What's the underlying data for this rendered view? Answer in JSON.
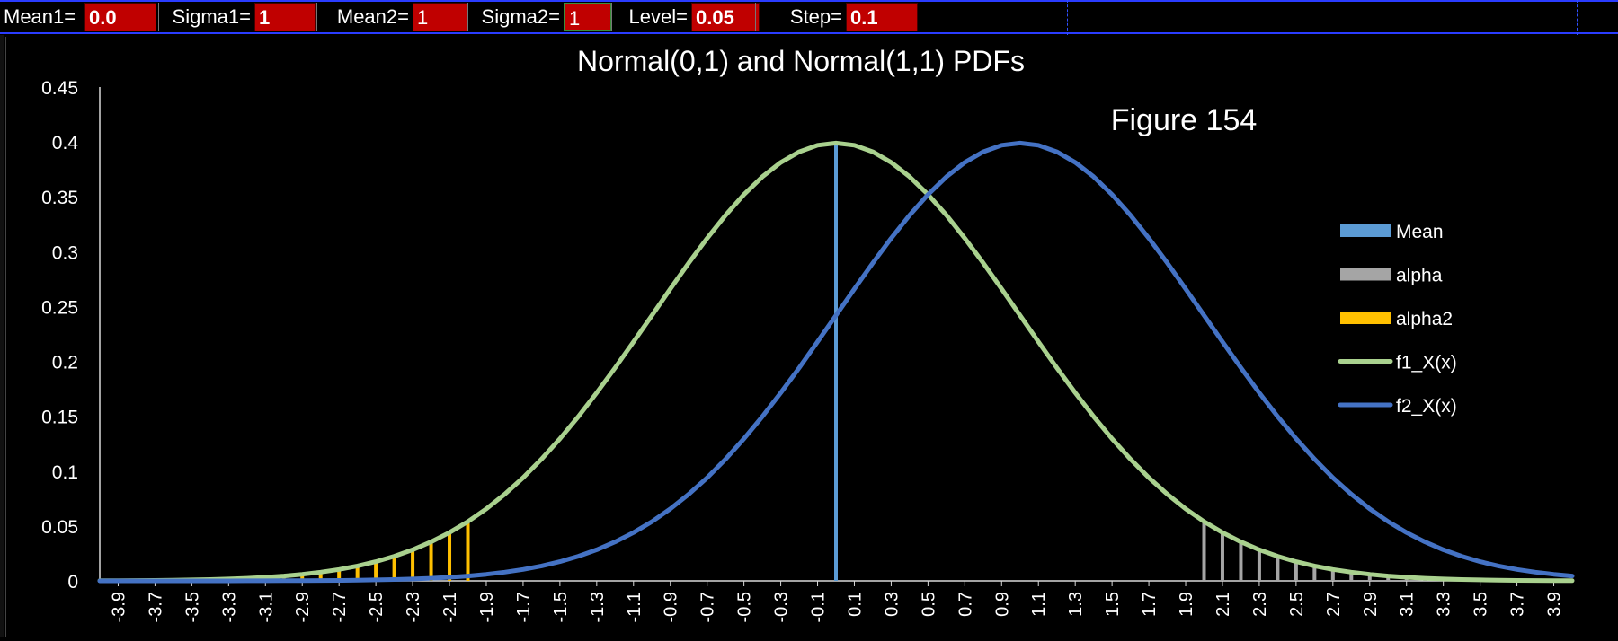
{
  "params": [
    {
      "label": "Mean1=",
      "value": "0.0",
      "bold": true
    },
    {
      "label": "Sigma1=",
      "value": "1",
      "bold": true
    },
    {
      "label": "Mean2=",
      "value": "1",
      "bold": false
    },
    {
      "label": "Sigma2=",
      "value": "1",
      "bold": false
    },
    {
      "label": "Level=",
      "value": "0.05",
      "bold": true
    },
    {
      "label": "Step=",
      "value": "0.1",
      "bold": true
    }
  ],
  "chart_data": {
    "type": "line",
    "title": "Normal(0,1) and Normal(1,1) PDFs",
    "annotation": "Figure 154",
    "xlabel": "",
    "ylabel": "",
    "ylim": [
      0,
      0.45
    ],
    "yticks": [
      "0",
      "0.05",
      "0.1",
      "0.15",
      "0.2",
      "0.25",
      "0.3",
      "0.35",
      "0.4",
      "0.45"
    ],
    "xlim": [
      -3.9,
      4.0
    ],
    "xticks": [
      "-3.9",
      "-3.7",
      "-3.5",
      "-3.3",
      "-3.1",
      "-2.9",
      "-2.7",
      "-2.5",
      "-2.3",
      "-2.1",
      "-1.9",
      "-1.7",
      "-1.5",
      "-1.3",
      "-1.1",
      "-0.9",
      "-0.7",
      "-0.5",
      "-0.3",
      "-0.1",
      "0.1",
      "0.3",
      "0.5",
      "0.7",
      "0.9",
      "1.1",
      "1.3",
      "1.5",
      "1.7",
      "1.9",
      "2.1",
      "2.3",
      "2.5",
      "2.7",
      "2.9",
      "3.1",
      "3.3",
      "3.5",
      "3.7",
      "3.9"
    ],
    "grid": false,
    "legend_position": "right",
    "series": [
      {
        "name": "Mean",
        "kind": "vline",
        "color": "#5b9bd5",
        "x": 0.0,
        "y": 0.399
      },
      {
        "name": "alpha",
        "kind": "bars",
        "color": "#a5a5a5",
        "x_from": 2.0,
        "x_to": 4.0,
        "step": 0.1,
        "pdf_mean": 0,
        "pdf_sigma": 1
      },
      {
        "name": "alpha2",
        "kind": "bars",
        "color": "#ffc000",
        "x_from": -4.0,
        "x_to": -2.0,
        "step": 0.1,
        "pdf_mean": 0,
        "pdf_sigma": 1
      },
      {
        "name": "f1_X(x)",
        "kind": "pdf",
        "color": "#a9d18e",
        "pdf_mean": 0,
        "pdf_sigma": 1,
        "x_from": -4.0,
        "x_to": 4.0,
        "step": 0.1
      },
      {
        "name": "f2_X(x)",
        "kind": "pdf",
        "color": "#4472c4",
        "pdf_mean": 1,
        "pdf_sigma": 1,
        "x_from": -4.0,
        "x_to": 4.0,
        "step": 0.1
      }
    ]
  }
}
